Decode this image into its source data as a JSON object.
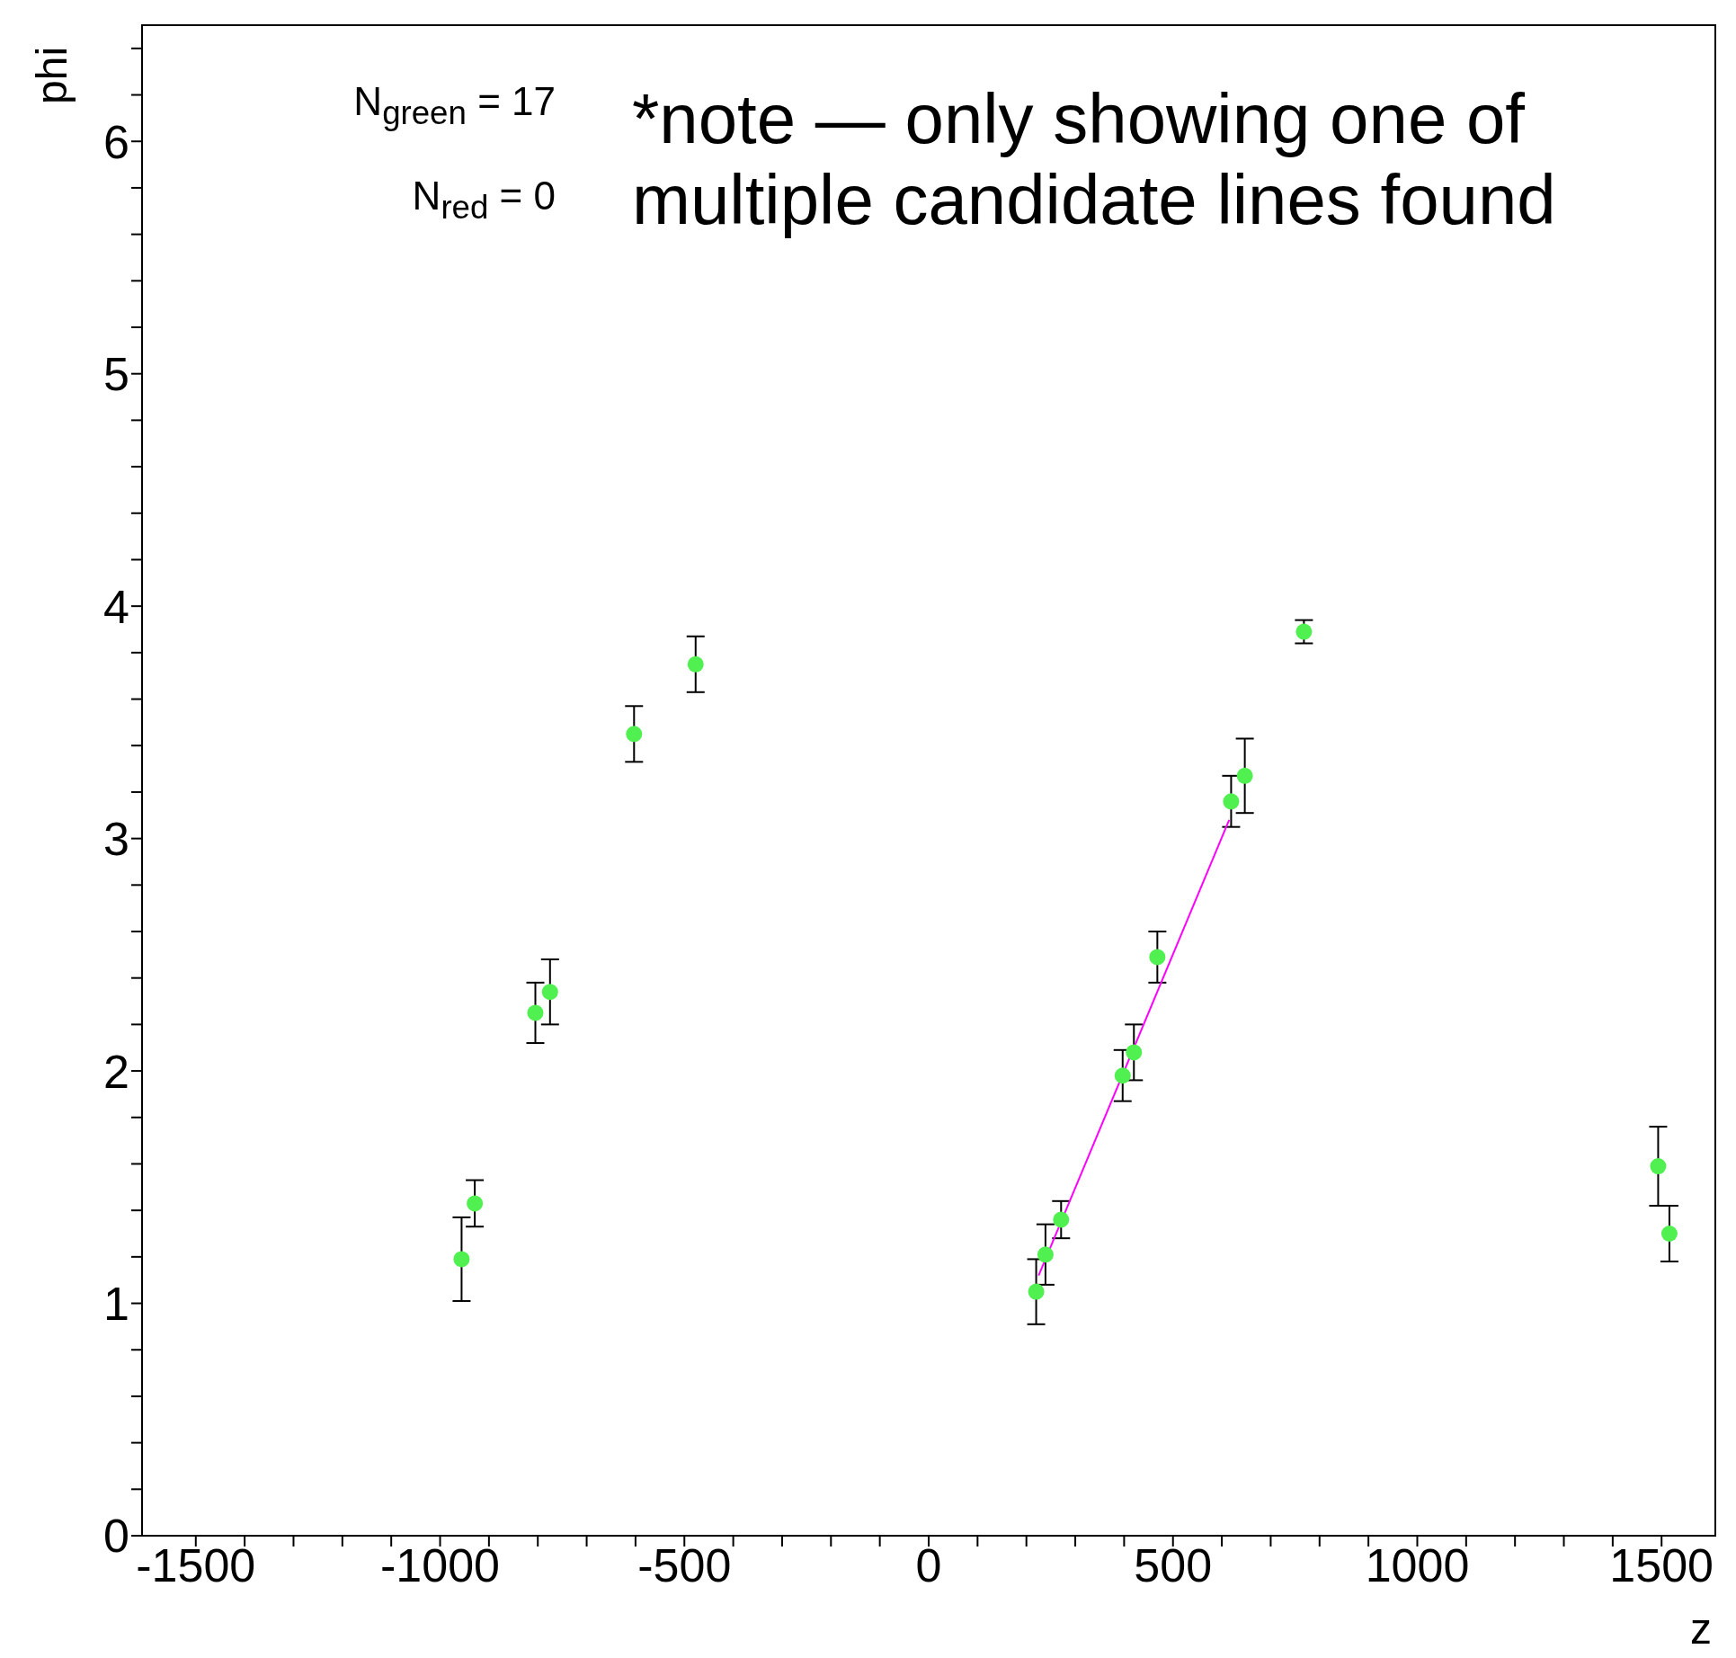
{
  "chart_data": {
    "type": "scatter",
    "xlabel": "z",
    "ylabel": "phi",
    "xlim": [
      -1610,
      1610
    ],
    "ylim": [
      0,
      6.5
    ],
    "xticks": [
      -1500,
      {
        "value": -1400,
        "label": null
      },
      {
        "value": -1300,
        "label": null
      },
      {
        "value": -1200,
        "label": null
      },
      {
        "value": -1100,
        "label": null
      },
      -1000,
      {
        "value": -900,
        "label": null
      },
      {
        "value": -800,
        "label": null
      },
      {
        "value": -700,
        "label": null
      },
      {
        "value": -600,
        "label": null
      },
      -500,
      {
        "value": -400,
        "label": null
      },
      {
        "value": -300,
        "label": null
      },
      {
        "value": -200,
        "label": null
      },
      {
        "value": -100,
        "label": null
      },
      0,
      {
        "value": 100,
        "label": null
      },
      {
        "value": 200,
        "label": null
      },
      {
        "value": 300,
        "label": null
      },
      {
        "value": 400,
        "label": null
      },
      500,
      {
        "value": 600,
        "label": null
      },
      {
        "value": 700,
        "label": null
      },
      {
        "value": 800,
        "label": null
      },
      {
        "value": 900,
        "label": null
      },
      1000,
      {
        "value": 1100,
        "label": null
      },
      {
        "value": 1200,
        "label": null
      },
      {
        "value": 1300,
        "label": null
      },
      {
        "value": 1400,
        "label": null
      },
      1500
    ],
    "yticks": [
      0,
      {
        "value": 0.2,
        "label": null
      },
      {
        "value": 0.4,
        "label": null
      },
      {
        "value": 0.6,
        "label": null
      },
      {
        "value": 0.8,
        "label": null
      },
      1,
      {
        "value": 1.2,
        "label": null
      },
      {
        "value": 1.4,
        "label": null
      },
      {
        "value": 1.6,
        "label": null
      },
      {
        "value": 1.8,
        "label": null
      },
      2,
      {
        "value": 2.2,
        "label": null
      },
      {
        "value": 2.4,
        "label": null
      },
      {
        "value": 2.6,
        "label": null
      },
      {
        "value": 2.8,
        "label": null
      },
      3,
      {
        "value": 3.2,
        "label": null
      },
      {
        "value": 3.4,
        "label": null
      },
      {
        "value": 3.6,
        "label": null
      },
      {
        "value": 3.8,
        "label": null
      },
      4,
      {
        "value": 4.2,
        "label": null
      },
      {
        "value": 4.4,
        "label": null
      },
      {
        "value": 4.6,
        "label": null
      },
      {
        "value": 4.8,
        "label": null
      },
      5,
      {
        "value": 5.2,
        "label": null
      },
      {
        "value": 5.4,
        "label": null
      },
      {
        "value": 5.6,
        "label": null
      },
      {
        "value": 5.8,
        "label": null
      },
      6,
      {
        "value": 6.2,
        "label": null
      },
      {
        "value": 6.4,
        "label": null
      }
    ],
    "marker": "circle",
    "series": [
      {
        "color": "#50f050",
        "x": [
          -956,
          -929,
          -805,
          -775,
          -603,
          -477,
          220,
          239,
          271,
          397,
          420,
          468,
          619,
          647,
          768,
          1493,
          1516
        ],
        "values": [
          1.19,
          1.43,
          2.25,
          2.34,
          3.45,
          3.75,
          1.05,
          1.21,
          1.36,
          1.98,
          2.08,
          2.49,
          3.16,
          3.27,
          3.89,
          1.59,
          1.3
        ],
        "errors": [
          0.18,
          0.1,
          0.13,
          0.14,
          0.12,
          0.12,
          0.14,
          0.13,
          0.08,
          0.11,
          0.12,
          0.11,
          0.11,
          0.16,
          0.05,
          0.17,
          0.12
        ]
      },
      {
        "type": "line",
        "color": "#ff00ff",
        "line_style": "solid",
        "marker": "none",
        "x": [
          225,
          615
        ],
        "values": [
          1.12,
          3.08
        ]
      }
    ],
    "annotations": [
      "N$_{green}$ = 17",
      "N$_{red}$ = 0",
      "*note — only showing one of multiple candidate lines found"
    ]
  }
}
